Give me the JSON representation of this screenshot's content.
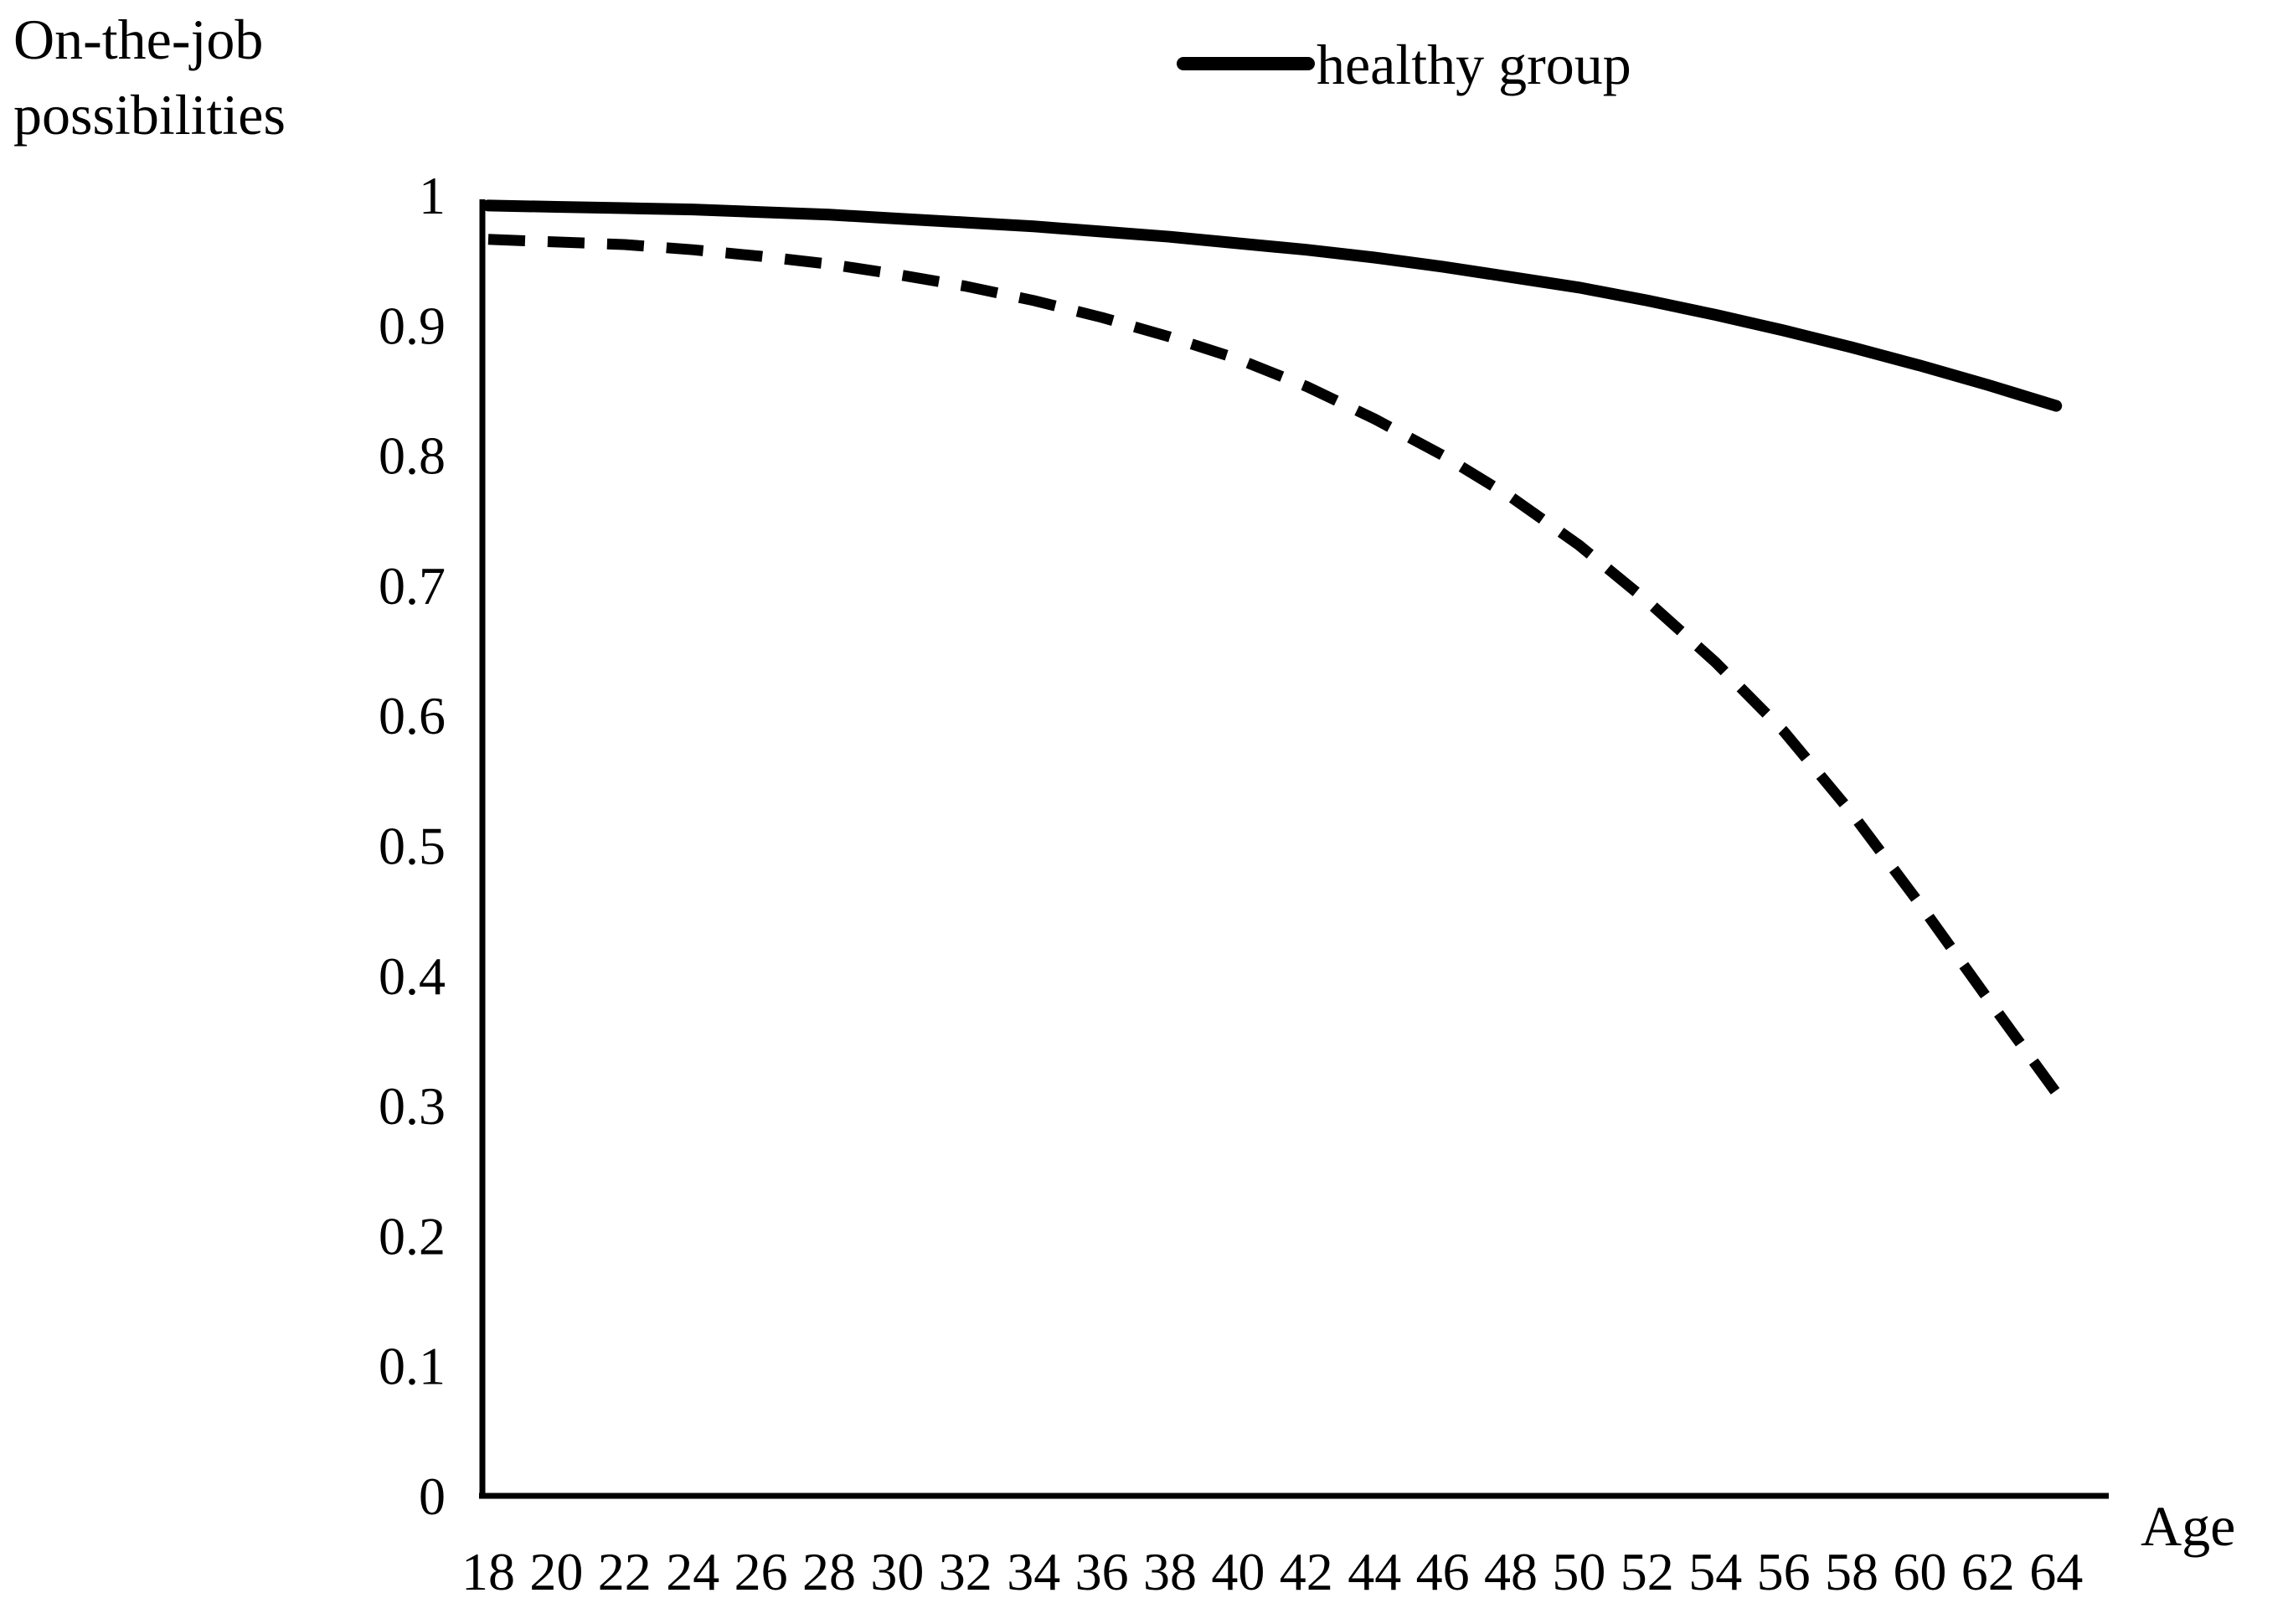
{
  "colors": {
    "background": "#ffffff",
    "ink": "#000000"
  },
  "chart_data": {
    "type": "line",
    "title": "",
    "ylabel": "On-the-job possibilities",
    "ylabel_lines": [
      "On-the-job",
      "possibilities"
    ],
    "xlabel": "Age",
    "categories": [
      18,
      20,
      22,
      24,
      26,
      28,
      30,
      32,
      34,
      36,
      38,
      40,
      42,
      44,
      46,
      48,
      50,
      52,
      54,
      56,
      58,
      60,
      62,
      64
    ],
    "xlim": [
      18,
      64
    ],
    "ylim": [
      0,
      1
    ],
    "grid": false,
    "yticks": [
      {
        "label": "1",
        "value": 1.0
      },
      {
        "label": "0.9",
        "value": 0.9
      },
      {
        "label": "0.8",
        "value": 0.8
      },
      {
        "label": "0.7",
        "value": 0.7
      },
      {
        "label": "0.6",
        "value": 0.6
      },
      {
        "label": "0.5",
        "value": 0.5
      },
      {
        "label": "0.4",
        "value": 0.4
      },
      {
        "label": "0.3",
        "value": 0.3
      },
      {
        "label": "0.2",
        "value": 0.2
      },
      {
        "label": "0.1",
        "value": 0.1
      },
      {
        "label": "0",
        "value": 0.0
      }
    ],
    "legend": {
      "position": "top-center",
      "entries": [
        {
          "label": "healthy group",
          "line_style": "solid",
          "color": "#000000"
        }
      ]
    },
    "series": [
      {
        "name": "healthy group",
        "line_style": "solid",
        "color": "#000000",
        "values": [
          0.992,
          0.991,
          0.99,
          0.989,
          0.987,
          0.985,
          0.982,
          0.979,
          0.976,
          0.972,
          0.968,
          0.963,
          0.958,
          0.952,
          0.945,
          0.937,
          0.929,
          0.919,
          0.908,
          0.896,
          0.883,
          0.869,
          0.854,
          0.838
        ]
      },
      {
        "name": "",
        "line_style": "dashed",
        "color": "#000000",
        "values": [
          0.966,
          0.964,
          0.962,
          0.958,
          0.953,
          0.947,
          0.939,
          0.93,
          0.919,
          0.906,
          0.891,
          0.874,
          0.853,
          0.828,
          0.8,
          0.768,
          0.731,
          0.688,
          0.641,
          0.588,
          0.525,
          0.455,
          0.382,
          0.31
        ]
      }
    ]
  }
}
